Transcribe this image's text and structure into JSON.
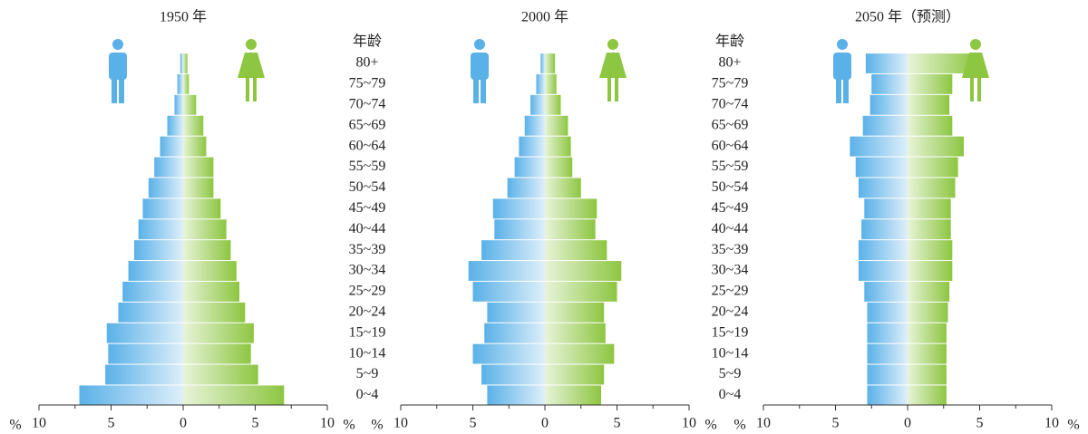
{
  "chart_data": [
    {
      "type": "pyramid",
      "title": "1950 年",
      "xlabel": "%",
      "xlim": [
        -10,
        10
      ],
      "xticks": [
        {
          "value": -10,
          "label": "10"
        },
        {
          "value": -5,
          "label": "5"
        },
        0,
        5,
        10
      ],
      "minor_xticks": [
        -7.5,
        -2.5,
        2.5,
        7.5
      ],
      "series": [
        {
          "color": "#5ab1e8",
          "values": [
            -0.2,
            -0.4,
            -0.6,
            -1.1,
            -1.6,
            -2.0,
            -2.4,
            -2.8,
            -3.1,
            -3.4,
            -3.8,
            -4.2,
            -4.5,
            -5.3,
            -5.2,
            -5.4,
            -7.2
          ]
        },
        {
          "color": "#8dc641",
          "values": [
            0.3,
            0.4,
            0.9,
            1.4,
            1.6,
            2.1,
            2.1,
            2.6,
            3.0,
            3.3,
            3.7,
            3.9,
            4.3,
            4.9,
            4.7,
            5.2,
            7.0
          ]
        }
      ]
    },
    {
      "type": "pyramid",
      "title": "2000 年",
      "xlabel": "%",
      "category_label": "年龄",
      "categories": [
        "80+",
        "75~79",
        "70~74",
        "65~69",
        "60~64",
        "55~59",
        "50~54",
        "45~49",
        "40~44",
        "35~39",
        "30~34",
        "25~29",
        "20~24",
        "15~19",
        "10~14",
        "5~9",
        "0~4"
      ],
      "xlim": [
        -10,
        10
      ],
      "xticks": [
        {
          "value": -10,
          "label": "10"
        },
        {
          "value": -5,
          "label": "5"
        },
        0,
        5,
        10
      ],
      "minor_xticks": [
        -7.5,
        -2.5,
        2.5,
        7.5
      ],
      "series": [
        {
          "color": "#5ab1e8",
          "values": [
            -0.3,
            -0.6,
            -1.0,
            -1.4,
            -1.8,
            -2.1,
            -2.6,
            -3.6,
            -3.5,
            -4.4,
            -5.3,
            -5.0,
            -4.0,
            -4.2,
            -5.0,
            -4.4,
            -4.0
          ]
        },
        {
          "color": "#8dc641",
          "values": [
            0.7,
            0.8,
            1.1,
            1.6,
            1.8,
            1.9,
            2.5,
            3.6,
            3.5,
            4.3,
            5.3,
            5.0,
            4.1,
            4.2,
            4.8,
            4.1,
            3.9
          ]
        }
      ]
    },
    {
      "type": "pyramid",
      "title": "2050 年（预测）",
      "xlabel": "%",
      "category_label": "年龄",
      "categories": [
        "80+",
        "75~79",
        "70~74",
        "65~69",
        "60~64",
        "55~59",
        "50~54",
        "45~49",
        "40~44",
        "35~39",
        "30~34",
        "25~29",
        "20~24",
        "15~19",
        "10~14",
        "5~9",
        "0~4"
      ],
      "xlim": [
        -10,
        10
      ],
      "xticks": [
        {
          "value": -10,
          "label": "10"
        },
        {
          "value": -5,
          "label": "5"
        },
        0,
        5,
        10
      ],
      "minor_xticks": [
        -7.5,
        -2.5,
        2.5,
        7.5
      ],
      "series": [
        {
          "color": "#5ab1e8",
          "values": [
            -2.9,
            -2.5,
            -2.6,
            -3.1,
            -4.0,
            -3.6,
            -3.4,
            -3.0,
            -3.2,
            -3.4,
            -3.4,
            -3.0,
            -2.8,
            -2.8,
            -2.8,
            -2.8,
            -2.8
          ]
        },
        {
          "color": "#8dc641",
          "values": [
            4.8,
            3.1,
            2.9,
            3.1,
            3.9,
            3.5,
            3.3,
            3.0,
            3.0,
            3.1,
            3.1,
            2.9,
            2.8,
            2.7,
            2.7,
            2.7,
            2.7
          ]
        }
      ]
    }
  ]
}
